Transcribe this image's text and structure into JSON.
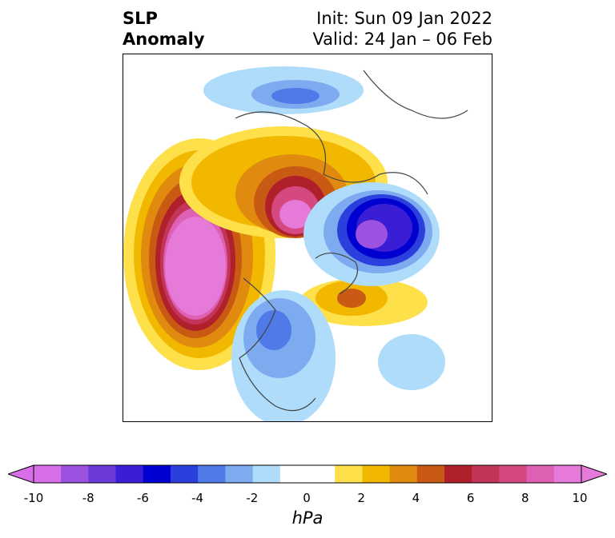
{
  "header": {
    "title_line1": "SLP",
    "title_line2": "Anomaly",
    "init": "Init: Sun 09 Jan 2022",
    "valid": "Valid: 24 Jan – 06 Feb"
  },
  "colorbar": {
    "units": "hPa",
    "tick_labels": [
      "-10",
      "-8",
      "-6",
      "-4",
      "-2",
      "0",
      "2",
      "4",
      "6",
      "8",
      "10"
    ],
    "colors": [
      "#d66fe8",
      "#9b52e0",
      "#6c3ad8",
      "#3a1ed6",
      "#0000d0",
      "#2a3fdc",
      "#4f7ae8",
      "#7eaaf0",
      "#aedcfa",
      "#ffffff",
      "#ffffff",
      "#fde04a",
      "#f2b800",
      "#e08a10",
      "#c85a14",
      "#b0202a",
      "#c23458",
      "#d44a80",
      "#dd60b2",
      "#e67ad8"
    ]
  }
}
